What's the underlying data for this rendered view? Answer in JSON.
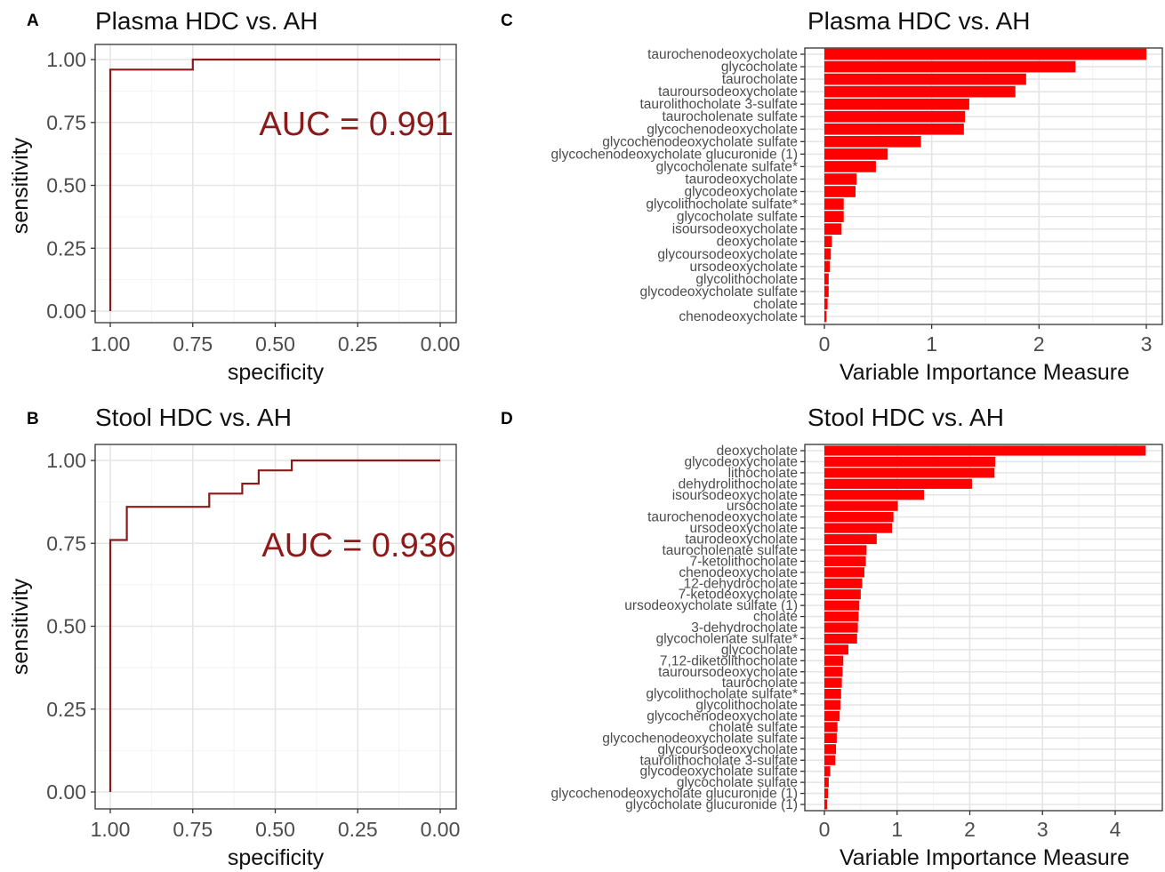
{
  "chart_data": [
    {
      "panel": "A",
      "type": "line",
      "title": "Plasma HDC vs. AH",
      "xlabel": "specificity",
      "ylabel": "sensitivity",
      "xlim": [
        1.0,
        0.0
      ],
      "ylim": [
        0.0,
        1.0
      ],
      "x_ticks": [
        "1.00",
        "0.75",
        "0.50",
        "0.25",
        "0.00"
      ],
      "y_ticks": [
        "1.00",
        "0.75",
        "0.50",
        "0.25",
        "0.00"
      ],
      "annotation": "AUC = 0.991",
      "line_color": "#8b1a1a",
      "series": [
        {
          "x": [
            1.0,
            1.0,
            0.75,
            0.75,
            0.0
          ],
          "y": [
            0.0,
            0.96,
            0.96,
            1.0,
            1.0
          ]
        }
      ]
    },
    {
      "panel": "B",
      "type": "line",
      "title": "Stool HDC vs. AH",
      "xlabel": "specificity",
      "ylabel": "sensitivity",
      "xlim": [
        1.0,
        0.0
      ],
      "ylim": [
        0.0,
        1.0
      ],
      "x_ticks": [
        "1.00",
        "0.75",
        "0.50",
        "0.25",
        "0.00"
      ],
      "y_ticks": [
        "1.00",
        "0.75",
        "0.50",
        "0.25",
        "0.00"
      ],
      "annotation": "AUC = 0.936",
      "line_color": "#8b1a1a",
      "series": [
        {
          "x": [
            1.0,
            1.0,
            0.95,
            0.95,
            0.7,
            0.7,
            0.6,
            0.6,
            0.55,
            0.55,
            0.45,
            0.45,
            0.0
          ],
          "y": [
            0.0,
            0.76,
            0.76,
            0.86,
            0.86,
            0.9,
            0.9,
            0.93,
            0.93,
            0.97,
            0.97,
            1.0,
            1.0
          ]
        }
      ]
    },
    {
      "panel": "C",
      "type": "bar",
      "orientation": "horizontal",
      "title": "Plasma HDC vs. AH",
      "xlabel": "Variable Importance Measure",
      "xlim": [
        0,
        3
      ],
      "x_ticks": [
        "0",
        "1",
        "2",
        "3"
      ],
      "bar_color": "#ff0000",
      "categories": [
        "taurochenodeoxycholate",
        "glycocholate",
        "taurocholate",
        "tauroursodeoxycholate",
        "taurolithocholate 3-sulfate",
        "taurocholenate sulfate",
        "glycochenodeoxycholate",
        "glycochenodeoxycholate sulfate",
        "glycochenodeoxycholate glucuronide (1)",
        "glycocholenate sulfate*",
        "taurodeoxycholate",
        "glycodeoxycholate",
        "glycolithocholate sulfate*",
        "glycocholate sulfate",
        "isoursodeoxycholate",
        "deoxycholate",
        "glycoursodeoxycholate",
        "ursodeoxycholate",
        "glycolithocholate",
        "glycodeoxycholate sulfate",
        "cholate",
        "chenodeoxycholate"
      ],
      "values": [
        3.0,
        2.34,
        1.88,
        1.78,
        1.35,
        1.31,
        1.3,
        0.9,
        0.59,
        0.48,
        0.3,
        0.29,
        0.18,
        0.18,
        0.16,
        0.07,
        0.06,
        0.05,
        0.04,
        0.04,
        0.03,
        0.02
      ]
    },
    {
      "panel": "D",
      "type": "bar",
      "orientation": "horizontal",
      "title": "Stool HDC vs. AH",
      "xlabel": "Variable Importance Measure",
      "xlim": [
        0,
        4.45
      ],
      "x_ticks": [
        "0",
        "1",
        "2",
        "3",
        "4"
      ],
      "bar_color": "#ff0000",
      "categories": [
        "deoxycholate",
        "glycodeoxycholate",
        "lithocholate",
        "dehydrolithocholate",
        "isoursodeoxycholate",
        "ursocholate",
        "taurochenodeoxycholate",
        "ursodeoxycholate",
        "taurodeoxycholate",
        "taurocholenate sulfate",
        "7-ketolithocholate",
        "chenodeoxycholate",
        "12-dehydrocholate",
        "7-ketodeoxycholate",
        "ursodeoxycholate sulfate (1)",
        "cholate",
        "3-dehydrocholate",
        "glycocholenate sulfate*",
        "glycocholate",
        "7,12-diketolithocholate",
        "tauroursodeoxycholate",
        "taurocholate",
        "glycolithocholate sulfate*",
        "glycolithocholate",
        "glycochenodeoxycholate",
        "cholate sulfate",
        "glycochenodeoxycholate sulfate",
        "glycoursodeoxycholate",
        "taurolithocholate 3-sulfate",
        "glycodeoxycholate sulfate",
        "glycocholate sulfate",
        "glycochenodeoxycholate glucuronide (1)",
        "glycocholate glucuronide (1)"
      ],
      "values": [
        4.42,
        2.35,
        2.34,
        2.03,
        1.37,
        1.01,
        0.95,
        0.93,
        0.72,
        0.58,
        0.57,
        0.55,
        0.52,
        0.5,
        0.48,
        0.47,
        0.46,
        0.45,
        0.33,
        0.26,
        0.25,
        0.24,
        0.23,
        0.22,
        0.21,
        0.18,
        0.17,
        0.16,
        0.15,
        0.08,
        0.06,
        0.05,
        0.04
      ]
    }
  ]
}
